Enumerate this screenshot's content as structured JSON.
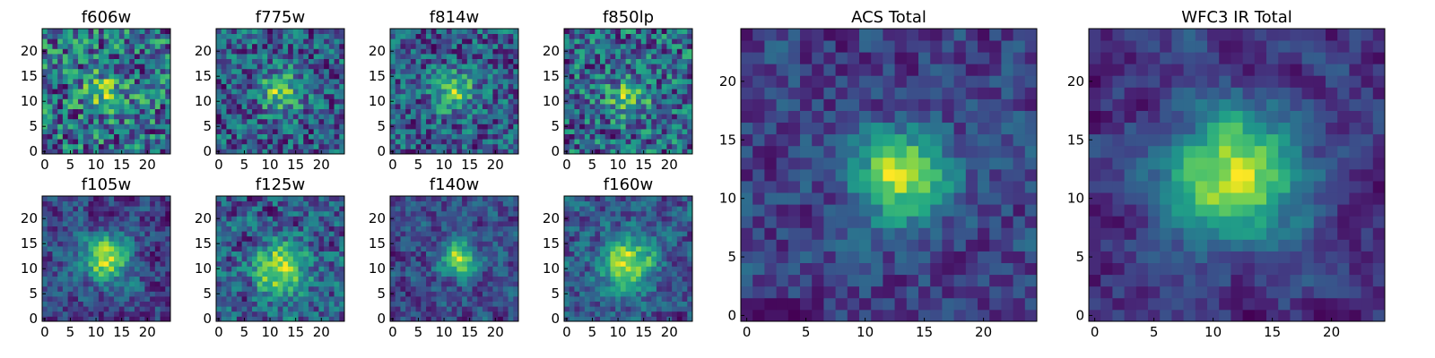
{
  "chart_data": [
    {
      "type": "heatmap",
      "title": "f606w",
      "xticks": [
        "0",
        "5",
        "10",
        "15",
        "20"
      ],
      "yticks": [
        "0",
        "5",
        "10",
        "15",
        "20"
      ],
      "xlim": [
        0,
        25
      ],
      "ylim": [
        0,
        25
      ],
      "grid_size": 25,
      "colormap": "viridis",
      "peak": [
        12,
        12
      ],
      "noise": 0.9,
      "blob_amp": 0.35,
      "blob_sigma": 3.0,
      "seed": 11
    },
    {
      "type": "heatmap",
      "title": "f775w",
      "xticks": [
        "0",
        "5",
        "10",
        "15",
        "20"
      ],
      "yticks": [
        "0",
        "5",
        "10",
        "15",
        "20"
      ],
      "xlim": [
        0,
        25
      ],
      "ylim": [
        0,
        25
      ],
      "grid_size": 25,
      "colormap": "viridis",
      "peak": [
        12,
        12
      ],
      "noise": 0.8,
      "blob_amp": 0.5,
      "blob_sigma": 2.8,
      "seed": 23
    },
    {
      "type": "heatmap",
      "title": "f814w",
      "xticks": [
        "0",
        "5",
        "10",
        "15",
        "20"
      ],
      "yticks": [
        "0",
        "5",
        "10",
        "15",
        "20"
      ],
      "xlim": [
        0,
        25
      ],
      "ylim": [
        0,
        25
      ],
      "grid_size": 25,
      "colormap": "viridis",
      "peak": [
        12,
        12
      ],
      "noise": 0.8,
      "blob_amp": 0.5,
      "blob_sigma": 2.8,
      "seed": 37
    },
    {
      "type": "heatmap",
      "title": "f850lp",
      "xticks": [
        "0",
        "5",
        "10",
        "15",
        "20"
      ],
      "yticks": [
        "0",
        "5",
        "10",
        "15",
        "20"
      ],
      "xlim": [
        0,
        25
      ],
      "ylim": [
        0,
        25
      ],
      "grid_size": 25,
      "colormap": "viridis",
      "peak": [
        12,
        11
      ],
      "noise": 0.85,
      "blob_amp": 0.4,
      "blob_sigma": 2.8,
      "seed": 41
    },
    {
      "type": "heatmap",
      "title": "f105w",
      "xticks": [
        "0",
        "5",
        "10",
        "15",
        "20"
      ],
      "yticks": [
        "0",
        "5",
        "10",
        "15",
        "20"
      ],
      "xlim": [
        0,
        25
      ],
      "ylim": [
        0,
        25
      ],
      "grid_size": 25,
      "colormap": "viridis",
      "peak": [
        12,
        12
      ],
      "noise": 0.5,
      "blob_amp": 0.7,
      "blob_sigma": 3.2,
      "seed": 53
    },
    {
      "type": "heatmap",
      "title": "f125w",
      "xticks": [
        "0",
        "5",
        "10",
        "15",
        "20"
      ],
      "yticks": [
        "0",
        "5",
        "10",
        "15",
        "20"
      ],
      "xlim": [
        0,
        25
      ],
      "ylim": [
        0,
        25
      ],
      "grid_size": 25,
      "colormap": "viridis",
      "peak": [
        12,
        10
      ],
      "noise": 0.55,
      "blob_amp": 0.6,
      "blob_sigma": 3.2,
      "seed": 61
    },
    {
      "type": "heatmap",
      "title": "f140w",
      "xticks": [
        "0",
        "5",
        "10",
        "15",
        "20"
      ],
      "yticks": [
        "0",
        "5",
        "10",
        "15",
        "20"
      ],
      "xlim": [
        0,
        25
      ],
      "ylim": [
        0,
        25
      ],
      "grid_size": 25,
      "colormap": "viridis",
      "peak": [
        13,
        12
      ],
      "noise": 0.5,
      "blob_amp": 0.7,
      "blob_sigma": 2.5,
      "seed": 79
    },
    {
      "type": "heatmap",
      "title": "f160w",
      "xticks": [
        "0",
        "5",
        "10",
        "15",
        "20"
      ],
      "yticks": [
        "0",
        "5",
        "10",
        "15",
        "20"
      ],
      "xlim": [
        0,
        25
      ],
      "ylim": [
        0,
        25
      ],
      "grid_size": 25,
      "colormap": "viridis",
      "peak": [
        12,
        11
      ],
      "noise": 0.5,
      "blob_amp": 0.7,
      "blob_sigma": 3.5,
      "seed": 83
    },
    {
      "type": "heatmap",
      "title": "ACS Total",
      "xticks": [
        "0",
        "5",
        "10",
        "15",
        "20"
      ],
      "yticks": [
        "0",
        "5",
        "10",
        "15",
        "20"
      ],
      "xlim": [
        0,
        25
      ],
      "ylim": [
        0,
        25
      ],
      "grid_size": 25,
      "colormap": "viridis",
      "peak": [
        13,
        12
      ],
      "noise": 0.55,
      "blob_amp": 0.85,
      "blob_sigma": 2.6,
      "seed": 97
    },
    {
      "type": "heatmap",
      "title": "WFC3 IR Total",
      "xticks": [
        "0",
        "5",
        "10",
        "15",
        "20"
      ],
      "yticks": [
        "0",
        "5",
        "10",
        "15",
        "20"
      ],
      "xlim": [
        0,
        25
      ],
      "ylim": [
        0,
        25
      ],
      "grid_size": 25,
      "colormap": "viridis",
      "peak": [
        12,
        12
      ],
      "noise": 0.3,
      "blob_amp": 0.85,
      "blob_sigma": 3.8,
      "seed": 101
    }
  ]
}
